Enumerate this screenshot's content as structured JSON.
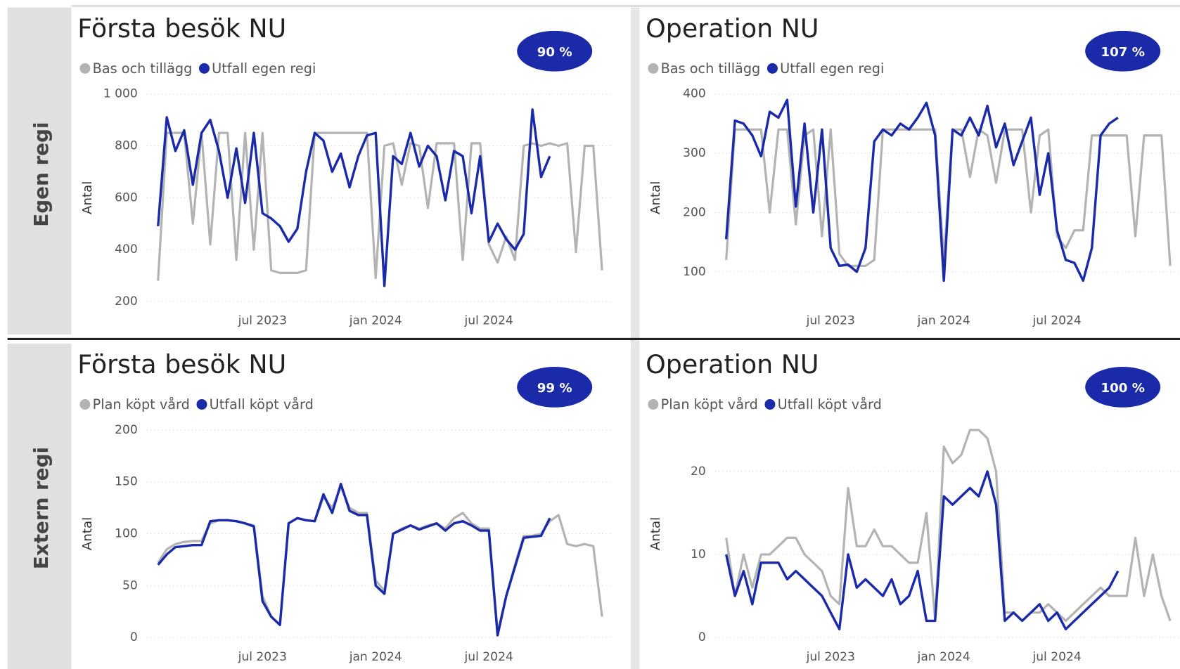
{
  "row_labels": [
    "Egen regi",
    "Extern regi"
  ],
  "chart_data": [
    {
      "type": "line",
      "title": "Första besök NU",
      "badge": "90 %",
      "y_label": "Antal",
      "legend": "top-left",
      "grid": true,
      "categories": [
        null,
        null,
        null,
        null,
        null,
        null,
        null,
        null,
        null,
        null,
        null,
        null,
        "jul 2023",
        null,
        null,
        null,
        null,
        null,
        null,
        null,
        null,
        null,
        null,
        null,
        null,
        "jan 2024",
        null,
        null,
        null,
        null,
        null,
        null,
        null,
        null,
        null,
        null,
        null,
        null,
        "jul 2024",
        null,
        null,
        null,
        null,
        null,
        null,
        null,
        null,
        null,
        null,
        null,
        null,
        null
      ],
      "ylim": [
        200,
        1000
      ],
      "yticks": [
        200,
        400,
        600,
        800,
        {
          "value": 1000,
          "label": "1 000"
        }
      ],
      "series": [
        {
          "name": "Bas och tillägg",
          "color": "#b3b3b3",
          "values": [
            280,
            850,
            850,
            850,
            500,
            850,
            420,
            850,
            850,
            360,
            850,
            400,
            850,
            320,
            310,
            310,
            310,
            320,
            850,
            850,
            850,
            850,
            850,
            850,
            850,
            290,
            800,
            810,
            650,
            810,
            800,
            560,
            810,
            810,
            810,
            360,
            810,
            810,
            420,
            350,
            450,
            360,
            800,
            810,
            800,
            810,
            800,
            810,
            390,
            800,
            800,
            320
          ]
        },
        {
          "name": "Utfall egen regi",
          "color": "#1a2aa8",
          "values": [
            490,
            910,
            780,
            860,
            650,
            850,
            900,
            780,
            600,
            790,
            580,
            850,
            540,
            520,
            490,
            430,
            480,
            700,
            850,
            820,
            700,
            770,
            640,
            760,
            840,
            850,
            260,
            760,
            730,
            850,
            720,
            800,
            760,
            590,
            780,
            760,
            540,
            760,
            430,
            500,
            440,
            400,
            460,
            940,
            680,
            760,
            null,
            null,
            null,
            null,
            null,
            null
          ]
        }
      ]
    },
    {
      "type": "line",
      "title": "Operation NU",
      "badge": "107 %",
      "y_label": "Antal",
      "legend": "top-left",
      "grid": true,
      "categories": [
        null,
        null,
        null,
        null,
        null,
        null,
        null,
        null,
        null,
        null,
        null,
        null,
        "jul 2023",
        null,
        null,
        null,
        null,
        null,
        null,
        null,
        null,
        null,
        null,
        null,
        null,
        "jan 2024",
        null,
        null,
        null,
        null,
        null,
        null,
        null,
        null,
        null,
        null,
        null,
        null,
        "jul 2024",
        null,
        null,
        null,
        null,
        null,
        null,
        null,
        null,
        null,
        null,
        null,
        null,
        null
      ],
      "ylim": [
        50,
        400
      ],
      "yticks": [
        100,
        200,
        300,
        400
      ],
      "series": [
        {
          "name": "Bas och tillägg",
          "color": "#b3b3b3",
          "values": [
            120,
            340,
            340,
            340,
            340,
            200,
            340,
            340,
            180,
            330,
            340,
            160,
            340,
            130,
            110,
            110,
            110,
            120,
            340,
            340,
            340,
            340,
            340,
            340,
            340,
            120,
            340,
            340,
            260,
            340,
            330,
            250,
            340,
            340,
            340,
            200,
            330,
            340,
            160,
            140,
            170,
            170,
            330,
            330,
            330,
            330,
            330,
            160,
            330,
            330,
            330,
            110
          ]
        },
        {
          "name": "Utfall egen regi",
          "color": "#1a2aa8",
          "values": [
            155,
            355,
            350,
            330,
            295,
            370,
            360,
            390,
            210,
            350,
            200,
            340,
            140,
            110,
            112,
            100,
            140,
            320,
            340,
            330,
            350,
            340,
            360,
            385,
            330,
            85,
            340,
            330,
            360,
            330,
            380,
            310,
            350,
            280,
            320,
            360,
            230,
            300,
            170,
            120,
            115,
            85,
            140,
            330,
            350,
            360,
            null,
            null,
            null,
            null,
            null,
            null
          ]
        }
      ]
    },
    {
      "type": "line",
      "title": "Första besök NU",
      "badge": "99 %",
      "y_label": "Antal",
      "legend": "top-left",
      "grid": true,
      "categories": [
        null,
        null,
        null,
        null,
        null,
        null,
        null,
        null,
        null,
        null,
        null,
        null,
        "jul 2023",
        null,
        null,
        null,
        null,
        null,
        null,
        null,
        null,
        null,
        null,
        null,
        null,
        "jan 2024",
        null,
        null,
        null,
        null,
        null,
        null,
        null,
        null,
        null,
        null,
        null,
        null,
        "jul 2024",
        null,
        null,
        null,
        null,
        null,
        null,
        null,
        null,
        null,
        null,
        null,
        null,
        null
      ],
      "ylim": [
        0,
        200
      ],
      "yticks": [
        0,
        50,
        100,
        150,
        200
      ],
      "series": [
        {
          "name": "Plan köpt vård",
          "color": "#b3b3b3",
          "values": [
            72,
            85,
            90,
            92,
            93,
            93,
            110,
            113,
            113,
            112,
            110,
            108,
            40,
            20,
            12,
            110,
            115,
            113,
            112,
            135,
            125,
            145,
            125,
            120,
            120,
            55,
            45,
            100,
            105,
            108,
            105,
            108,
            110,
            105,
            115,
            120,
            110,
            105,
            105,
            5,
            40,
            70,
            98,
            98,
            100,
            112,
            118,
            90,
            88,
            90,
            88,
            20
          ]
        },
        {
          "name": "Utfall köpt vård",
          "color": "#1a2aa8",
          "values": [
            70,
            80,
            87,
            88,
            89,
            89,
            112,
            113,
            113,
            112,
            110,
            107,
            35,
            20,
            12,
            110,
            115,
            113,
            112,
            138,
            120,
            148,
            122,
            118,
            118,
            50,
            42,
            100,
            104,
            108,
            104,
            107,
            110,
            103,
            110,
            112,
            108,
            103,
            103,
            2,
            40,
            68,
            96,
            97,
            98,
            115,
            null,
            null,
            null,
            null,
            null,
            null
          ]
        }
      ]
    },
    {
      "type": "line",
      "title": "Operation NU",
      "badge": "100 %",
      "y_label": "Antal",
      "legend": "top-left",
      "grid": true,
      "categories": [
        null,
        null,
        null,
        null,
        null,
        null,
        null,
        null,
        null,
        null,
        null,
        null,
        "jul 2023",
        null,
        null,
        null,
        null,
        null,
        null,
        null,
        null,
        null,
        null,
        null,
        null,
        "jan 2024",
        null,
        null,
        null,
        null,
        null,
        null,
        null,
        null,
        null,
        null,
        null,
        null,
        "jul 2024",
        null,
        null,
        null,
        null,
        null,
        null,
        null,
        null,
        null,
        null,
        null,
        null,
        null
      ],
      "ylim": [
        0,
        25
      ],
      "yticks": [
        0,
        10,
        20
      ],
      "series": [
        {
          "name": "Plan köpt vård",
          "color": "#b3b3b3",
          "values": [
            12,
            5,
            10,
            6,
            10,
            10,
            11,
            12,
            12,
            10,
            9,
            8,
            5,
            4,
            18,
            11,
            11,
            13,
            11,
            11,
            10,
            9,
            9,
            15,
            2,
            23,
            21,
            22,
            25,
            25,
            24,
            20,
            3,
            3,
            2,
            3,
            3,
            4,
            3,
            2,
            3,
            4,
            5,
            6,
            5,
            5,
            5,
            12,
            5,
            10,
            5,
            2
          ]
        },
        {
          "name": "Utfall köpt vård",
          "color": "#1a2aa8",
          "values": [
            10,
            5,
            8,
            4,
            9,
            9,
            9,
            7,
            8,
            7,
            6,
            5,
            3,
            1,
            10,
            6,
            7,
            6,
            5,
            7,
            4,
            5,
            8,
            2,
            2,
            17,
            16,
            17,
            18,
            17,
            20,
            16,
            2,
            3,
            2,
            3,
            4,
            2,
            3,
            1,
            2,
            3,
            4,
            5,
            6,
            8,
            null,
            null,
            null,
            null,
            null,
            null
          ]
        }
      ]
    }
  ]
}
